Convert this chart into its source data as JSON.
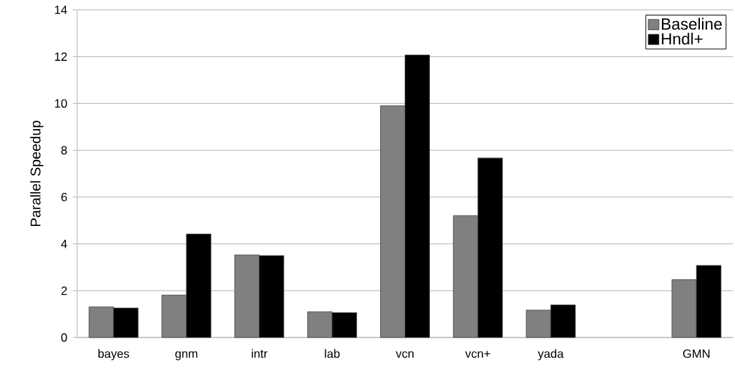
{
  "chart_data": {
    "type": "bar",
    "ylabel": "Parallel Speedup",
    "categories": [
      "bayes",
      "gnm",
      "intr",
      "lab",
      "vcn",
      "vcn+",
      "yada",
      null,
      "GMN"
    ],
    "series": [
      {
        "name": "Baseline",
        "color": "#808080",
        "values": [
          1.31,
          1.81,
          3.53,
          1.1,
          9.9,
          5.21,
          1.17,
          null,
          2.47
        ]
      },
      {
        "name": "Hndl+",
        "color": "#000000",
        "values": [
          1.26,
          4.42,
          3.5,
          1.06,
          12.07,
          7.67,
          1.39,
          null,
          3.08
        ]
      }
    ],
    "ylim": [
      0,
      14
    ],
    "yticks": [
      0,
      2,
      4,
      6,
      8,
      10,
      12,
      14
    ],
    "grid": "y",
    "legend": "top right"
  }
}
